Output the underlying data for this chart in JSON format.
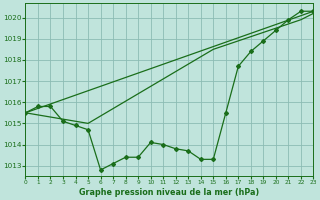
{
  "background_color": "#c0e4dc",
  "grid_color": "#8cbcb4",
  "line_color": "#1a6e1a",
  "title": "Graphe pression niveau de la mer (hPa)",
  "xlim": [
    0,
    23
  ],
  "ylim": [
    1012.5,
    1020.7
  ],
  "yticks": [
    1013,
    1014,
    1015,
    1016,
    1017,
    1018,
    1019,
    1020
  ],
  "xticks": [
    0,
    1,
    2,
    3,
    4,
    5,
    6,
    7,
    8,
    9,
    10,
    11,
    12,
    13,
    14,
    15,
    16,
    17,
    18,
    19,
    20,
    21,
    22,
    23
  ],
  "series1_x": [
    0,
    1,
    2,
    3,
    4,
    5,
    6,
    7,
    8,
    9,
    10,
    11,
    12,
    13,
    14,
    15,
    16,
    17,
    18,
    19,
    20,
    21,
    22,
    23
  ],
  "series1_y": [
    1015.5,
    1015.8,
    1015.8,
    1015.1,
    1014.9,
    1014.7,
    1012.8,
    1013.1,
    1013.4,
    1013.4,
    1014.1,
    1014.0,
    1013.8,
    1013.7,
    1013.3,
    1013.3,
    1015.5,
    1017.7,
    1018.4,
    1018.9,
    1019.4,
    1019.9,
    1020.3,
    1020.3
  ],
  "series2_x": [
    0,
    23
  ],
  "series2_y": [
    1015.5,
    1020.3
  ],
  "series3_x": [
    0,
    5,
    15,
    22,
    23
  ],
  "series3_y": [
    1015.5,
    1015.0,
    1018.5,
    1019.9,
    1020.2
  ]
}
